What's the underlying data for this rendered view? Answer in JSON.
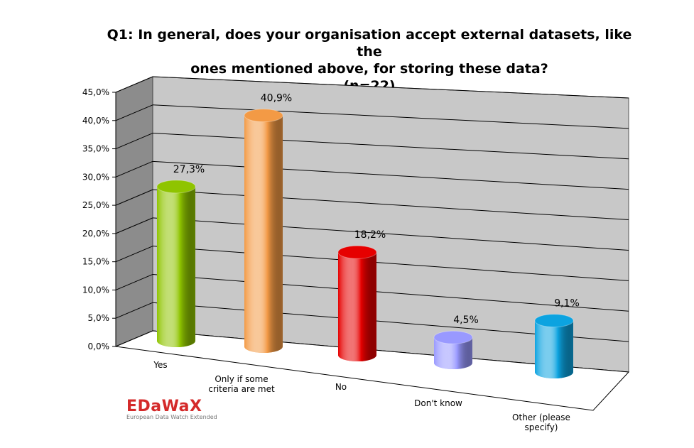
{
  "title_lines": [
    "Q1:  In general, does your organisation accept external datasets, like the",
    "ones mentioned above, for storing these data?",
    "(n=22)"
  ],
  "logo": {
    "name": "EDaWaX",
    "subtitle": "European Data Watch Extended"
  },
  "colors": {
    "bars": [
      "#8fc400",
      "#f39a45",
      "#e60000",
      "#9999ff",
      "#0ca3e0"
    ],
    "wall": "#c8c8c8",
    "side_wall": "#8c8c8c"
  },
  "chart_data": {
    "type": "bar",
    "style": "3d-cylinder",
    "categories": [
      "Yes",
      "Only if some criteria are met",
      "No",
      "Don't know",
      "Other (please specify)"
    ],
    "category_labels": [
      [
        "Yes"
      ],
      [
        "Only if some",
        "criteria are met"
      ],
      [
        "No"
      ],
      [
        "Don't know"
      ],
      [
        "Other (please",
        "specify)"
      ]
    ],
    "values": [
      27.3,
      40.9,
      18.2,
      4.5,
      9.1
    ],
    "value_labels": [
      "27,3%",
      "40,9%",
      "18,2%",
      "4,5%",
      "9,1%"
    ],
    "y_ticks": [
      "0,0%",
      "5,0%",
      "10,0%",
      "15,0%",
      "20,0%",
      "25,0%",
      "30,0%",
      "35,0%",
      "40,0%",
      "45,0%"
    ],
    "ylim": [
      0,
      45
    ],
    "grid": true,
    "legend": "none"
  }
}
